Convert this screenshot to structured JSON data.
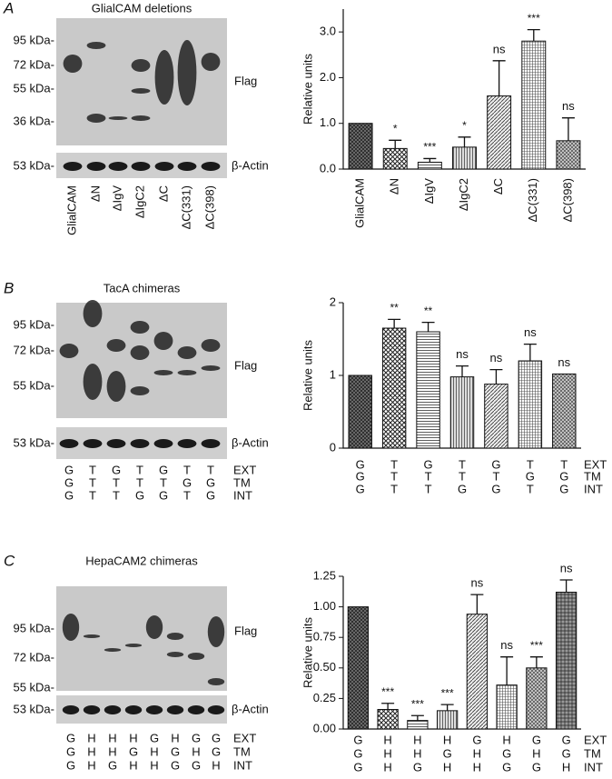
{
  "blots": [
    {
      "panel": "A",
      "title": "GlialCAM deletions",
      "markers": [
        "95 kDa-",
        "72 kDa-",
        "55 kDa-",
        "36 kDa-"
      ],
      "actin_marker": "53 kDa-",
      "flag_label": "Flag",
      "actin_label": "β-Actin",
      "lanes": [
        "GlialCAM",
        "ΔN",
        "ΔIgV",
        "ΔIgC2",
        "ΔC",
        "ΔC(331)",
        "ΔC(398)"
      ]
    },
    {
      "panel": "B",
      "title": "TacA chimeras",
      "markers": [
        "95 kDa-",
        "72 kDa-",
        "55 kDa-"
      ],
      "actin_marker": "53 kDa-",
      "flag_label": "Flag",
      "actin_label": "β-Actin",
      "lane_rows": [
        {
          "name": "EXT",
          "labels": [
            "G",
            "T",
            "G",
            "T",
            "G",
            "T",
            "T"
          ]
        },
        {
          "name": "TM",
          "labels": [
            "G",
            "T",
            "T",
            "T",
            "T",
            "G",
            "G"
          ]
        },
        {
          "name": "INT",
          "labels": [
            "G",
            "T",
            "T",
            "G",
            "G",
            "T",
            "G"
          ]
        }
      ]
    },
    {
      "panel": "C",
      "title": "HepaCAM2 chimeras",
      "markers": [
        "95 kDa-",
        "72 kDa-",
        "55 kDa-"
      ],
      "actin_marker": "53 kDa-",
      "flag_label": "Flag",
      "actin_label": "β-Actin",
      "lane_rows": [
        {
          "name": "EXT",
          "labels": [
            "G",
            "H",
            "H",
            "H",
            "G",
            "H",
            "G",
            "G"
          ]
        },
        {
          "name": "TM",
          "labels": [
            "G",
            "H",
            "H",
            "G",
            "H",
            "G",
            "H",
            "G"
          ]
        },
        {
          "name": "INT",
          "labels": [
            "G",
            "H",
            "G",
            "H",
            "H",
            "G",
            "G",
            "H"
          ]
        }
      ]
    }
  ],
  "chart_data": [
    {
      "type": "bar",
      "y_label": "Relative units",
      "categories": [
        "GlialCAM",
        "ΔN",
        "ΔIgV",
        "ΔIgC2",
        "ΔC",
        "ΔC(331)",
        "ΔC(398)"
      ],
      "values": [
        1.0,
        0.45,
        0.15,
        0.48,
        1.6,
        2.8,
        0.62
      ],
      "errors": [
        0,
        0.18,
        0.08,
        0.22,
        0.77,
        0.25,
        0.5
      ],
      "annotations": [
        null,
        "*",
        "***",
        "*",
        "ns",
        "***",
        "ns"
      ],
      "ylim": [
        0,
        3.5
      ],
      "yticks": [
        {
          "value": 0,
          "label": "0.0"
        },
        {
          "value": 1,
          "label": "1.0"
        },
        {
          "value": 2,
          "label": "2.0"
        },
        {
          "value": 3,
          "label": "3.0"
        }
      ]
    },
    {
      "type": "bar",
      "y_label": "Relative units",
      "category_rows": [
        {
          "name": "EXT",
          "labels": [
            "G",
            "T",
            "G",
            "T",
            "G",
            "T",
            "T"
          ]
        },
        {
          "name": "TM",
          "labels": [
            "G",
            "T",
            "T",
            "T",
            "T",
            "G",
            "G"
          ]
        },
        {
          "name": "INT",
          "labels": [
            "G",
            "T",
            "T",
            "G",
            "G",
            "T",
            "G"
          ]
        }
      ],
      "values": [
        1.0,
        1.65,
        1.6,
        0.98,
        0.88,
        1.2,
        1.02
      ],
      "errors": [
        0,
        0.12,
        0.13,
        0.15,
        0.2,
        0.23,
        0
      ],
      "annotations": [
        null,
        "**",
        "**",
        "ns",
        "ns",
        "ns",
        "ns"
      ],
      "ylim": [
        0,
        2
      ],
      "yticks": [
        0,
        1,
        2
      ]
    },
    {
      "type": "bar",
      "y_label": "Relative units",
      "category_rows": [
        {
          "name": "EXT",
          "labels": [
            "G",
            "H",
            "H",
            "H",
            "G",
            "H",
            "G",
            "G"
          ]
        },
        {
          "name": "TM",
          "labels": [
            "G",
            "H",
            "H",
            "G",
            "H",
            "G",
            "H",
            "G"
          ]
        },
        {
          "name": "INT",
          "labels": [
            "G",
            "H",
            "G",
            "H",
            "H",
            "G",
            "G",
            "H"
          ]
        }
      ],
      "values": [
        1.0,
        0.16,
        0.07,
        0.15,
        0.94,
        0.36,
        0.5,
        1.12
      ],
      "errors": [
        0,
        0.05,
        0.04,
        0.05,
        0.16,
        0.23,
        0.09,
        0.1
      ],
      "annotations": [
        null,
        "***",
        "***",
        "***",
        "ns",
        "ns",
        "***",
        "ns"
      ],
      "ylim": [
        0,
        1.25
      ],
      "yticks": [
        {
          "value": 0,
          "label": "0.00"
        },
        {
          "value": 0.25,
          "label": "0.25"
        },
        {
          "value": 0.5,
          "label": "0.50"
        },
        {
          "value": 0.75,
          "label": "0.75"
        },
        {
          "value": 1,
          "label": "1.00"
        },
        {
          "value": 1.25,
          "label": "1.25"
        }
      ]
    }
  ]
}
